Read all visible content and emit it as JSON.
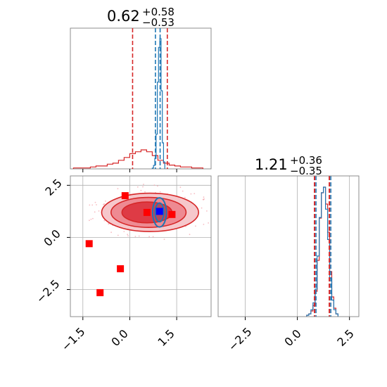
{
  "chart_data": [
    {
      "type": "histogram",
      "panel": "marginal-param-1",
      "title": {
        "value": "0.62",
        "plus": "+0.58",
        "minus": "−0.53"
      },
      "xlim": [
        -1.9,
        2.6
      ],
      "x_ticks": [
        "−1.5",
        "0.0",
        "1.5"
      ],
      "show_x_tick_labels": false,
      "quantile_lines": {
        "wide": [
          0.09,
          1.2
        ],
        "narrow": [
          0.82,
          0.97
        ]
      },
      "series": [
        {
          "name": "",
          "color": "#d62728",
          "bins": [
            -1.8,
            -1.62,
            -1.44,
            -1.26,
            -1.08,
            -0.9,
            -0.72,
            -0.54,
            -0.36,
            -0.18,
            0,
            0.18,
            0.36,
            0.54,
            0.72,
            0.9,
            1.08,
            1.26,
            1.44,
            1.62,
            1.8,
            1.98,
            2.16,
            2.34
          ],
          "counts": [
            1,
            1,
            1,
            2,
            3,
            3,
            5,
            6,
            9,
            12,
            16,
            18,
            20,
            18,
            14,
            9,
            6,
            4,
            3,
            2,
            2,
            1,
            1
          ]
        },
        {
          "name": "",
          "color": "#1f77b4",
          "bins": [
            0.72,
            0.76,
            0.8,
            0.84,
            0.88,
            0.92,
            0.96,
            1.0,
            1.04,
            1.08,
            1.12
          ],
          "counts": [
            1,
            4,
            12,
            40,
            100,
            140,
            150,
            90,
            30,
            8
          ]
        }
      ]
    },
    {
      "type": "scatter",
      "panel": "joint-param-1-param-2",
      "xlim": [
        -1.9,
        2.6
      ],
      "ylim": [
        -3.8,
        2.95
      ],
      "x_ticks": [
        "−1.5",
        "0.0",
        "1.5"
      ],
      "y_ticks": [
        "2.5",
        "0.0",
        "−2.5"
      ],
      "grid": true,
      "red_points": [
        {
          "x": -0.15,
          "y": 2.0
        },
        {
          "x": 0.55,
          "y": 1.2
        },
        {
          "x": 1.35,
          "y": 1.1
        },
        {
          "x": -1.3,
          "y": -0.3
        },
        {
          "x": -0.3,
          "y": -1.5
        },
        {
          "x": -0.95,
          "y": -2.65
        }
      ],
      "blue_point": {
        "x": 0.95,
        "y": 1.25
      },
      "red_contours": [
        {
          "cx": 0.65,
          "cy": 1.2,
          "rx": 1.55,
          "ry": 0.92
        },
        {
          "cx": 0.6,
          "cy": 1.2,
          "rx": 1.2,
          "ry": 0.72
        },
        {
          "cx": 0.55,
          "cy": 1.2,
          "rx": 0.8,
          "ry": 0.5
        }
      ],
      "blue_contours": [
        {
          "cx": 0.95,
          "cy": 1.2,
          "rx": 0.22,
          "ry": 0.7
        },
        {
          "cx": 0.95,
          "cy": 1.2,
          "rx": 0.14,
          "ry": 0.45
        }
      ]
    },
    {
      "type": "histogram",
      "panel": "marginal-param-2",
      "title": {
        "value": "1.21",
        "plus": "+0.36",
        "minus": "−0.35"
      },
      "xlim": [
        -3.8,
        2.95
      ],
      "x_ticks": [
        "−2.5",
        "0.0",
        "2.5"
      ],
      "quantile_lines": {
        "wide": [
          0.86,
          1.57
        ],
        "narrow": [
          0.86,
          1.57
        ]
      },
      "series": [
        {
          "name": "",
          "color": "#d62728",
          "bins": [
            0.45,
            0.55,
            0.65,
            0.75,
            0.85,
            0.95,
            1.05,
            1.15,
            1.25,
            1.35,
            1.45,
            1.55,
            1.65,
            1.75,
            1.85,
            1.95
          ],
          "counts": [
            1,
            2,
            4,
            8,
            18,
            40,
            70,
            88,
            92,
            80,
            60,
            32,
            14,
            6,
            2
          ]
        },
        {
          "name": "",
          "color": "#1f77b4",
          "bins": [
            0.45,
            0.55,
            0.65,
            0.75,
            0.85,
            0.95,
            1.05,
            1.15,
            1.25,
            1.35,
            1.45,
            1.55,
            1.65,
            1.75,
            1.85,
            1.95
          ],
          "counts": [
            1,
            2,
            5,
            10,
            20,
            44,
            72,
            90,
            94,
            78,
            56,
            28,
            12,
            5,
            2
          ]
        }
      ]
    }
  ]
}
